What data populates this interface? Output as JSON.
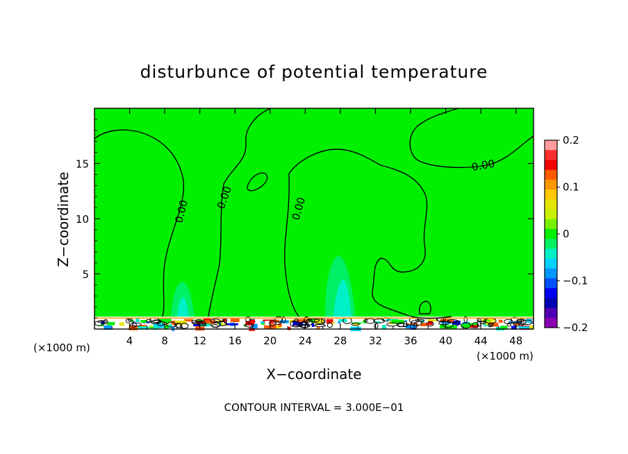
{
  "chart_data": {
    "type": "heatmap",
    "title": "disturbunce of potential temperature",
    "xlabel": "X−coordinate",
    "ylabel": "Z−coordinate",
    "x_unit_left": "(×1000 m)",
    "x_unit_right": "(×1000 m)",
    "xlim": [
      0,
      50
    ],
    "ylim": [
      0,
      20
    ],
    "x_ticks": [
      "4",
      "8",
      "12",
      "16",
      "20",
      "24",
      "28",
      "32",
      "36",
      "40",
      "44",
      "48"
    ],
    "y_ticks": [
      "5",
      "10",
      "15"
    ],
    "contour_interval_text": "CONTOUR INTERVAL = 3.000E−01",
    "contour_labels": [
      "0.00",
      "0.00",
      "0.00",
      "0.00"
    ],
    "colorbar": {
      "range": [
        -0.2,
        0.2
      ],
      "tick_labels": [
        "0.2",
        "0.1",
        "0",
        "−0.1",
        "−0.2"
      ],
      "colors": [
        "#ff9c9c",
        "#ff2e2e",
        "#f00000",
        "#ff5a00",
        "#ff9600",
        "#ffc800",
        "#e6e600",
        "#c8f000",
        "#78f000",
        "#00f000",
        "#00f064",
        "#00f0c8",
        "#00d2ff",
        "#0096ff",
        "#0050ff",
        "#0000f0",
        "#0000b4",
        "#5000b4",
        "#8c00b4"
      ]
    },
    "background_value": 0.0,
    "features": [
      {
        "name": "cool-plume-1",
        "x": 10,
        "z_top": 4,
        "value": -0.05
      },
      {
        "name": "cool-plume-2",
        "x": 28,
        "z_top": 6.5,
        "value": -0.05
      },
      {
        "name": "surface-layer",
        "z_top": 1,
        "value_range": [
          -0.2,
          0.2
        ]
      }
    ]
  }
}
